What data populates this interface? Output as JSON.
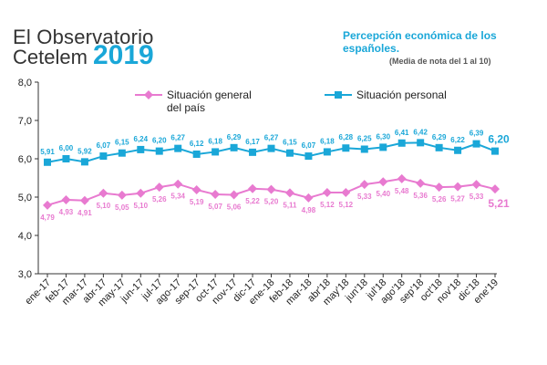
{
  "brand": {
    "line1": "El Observatorio",
    "line2": "Cetelem",
    "year": "2019"
  },
  "header": {
    "title": "Percepción económica de los españoles.",
    "subtitle": "(Media de nota del 1 al 10)"
  },
  "colors": {
    "personal": "#1aa7d8",
    "general": "#e87ad0",
    "axis": "#333333"
  },
  "chart_data": {
    "type": "line",
    "title": "Percepción económica de los españoles.",
    "subtitle": "(Media de nota del 1 al 10)",
    "xlabel": "",
    "ylabel": "",
    "ylim": [
      3.0,
      8.0
    ],
    "yticks": [
      "3,0",
      "4,0",
      "5,0",
      "6,0",
      "7,0",
      "8,0"
    ],
    "grid": false,
    "legend_position": "top",
    "categories": [
      "ene-17",
      "feb-17",
      "mar-17",
      "abr-17",
      "may-17",
      "jun-17",
      "jul-17",
      "ago-17",
      "sep-17",
      "oct-17",
      "nov-17",
      "dic-17",
      "ene-18",
      "feb-18",
      "mar-18",
      "abr'18",
      "may'18",
      "jun'18",
      "jul'18",
      "ago'18",
      "sep'18",
      "oct'18",
      "nov'18",
      "dic'18",
      "ene'19"
    ],
    "series": [
      {
        "name": "Situación general del país",
        "color": "#e87ad0",
        "marker": "diamond",
        "values": [
          4.79,
          4.93,
          4.91,
          5.1,
          5.05,
          5.1,
          5.26,
          5.34,
          5.19,
          5.07,
          5.06,
          5.22,
          5.2,
          5.11,
          4.98,
          5.12,
          5.12,
          5.33,
          5.4,
          5.48,
          5.36,
          5.26,
          5.27,
          5.33,
          5.21
        ],
        "labels": [
          "4,79",
          "4,93",
          "4,91",
          "5,10",
          "5,05",
          "5,10",
          "5,26",
          "5,34",
          "5,19",
          "5,07",
          "5,06",
          "5,22",
          "5,20",
          "5,11",
          "4,98",
          "5,12",
          "5,12",
          "5,33",
          "5,40",
          "5,48",
          "5,36",
          "5,26",
          "5,27",
          "5,33",
          "5,21"
        ]
      },
      {
        "name": "Situación personal",
        "color": "#1aa7d8",
        "marker": "square",
        "values": [
          5.91,
          6.0,
          5.92,
          6.07,
          6.15,
          6.24,
          6.2,
          6.27,
          6.12,
          6.18,
          6.29,
          6.17,
          6.27,
          6.15,
          6.07,
          6.18,
          6.28,
          6.25,
          6.3,
          6.41,
          6.42,
          6.29,
          6.22,
          6.39,
          6.2
        ],
        "labels": [
          "5,91",
          "6,00",
          "5,92",
          "6,07",
          "6,15",
          "6,24",
          "6,20",
          "6,27",
          "6,12",
          "6,18",
          "6,29",
          "6,17",
          "6,27",
          "6,15",
          "6,07",
          "6,18",
          "6,28",
          "6,25",
          "6,30",
          "6,41",
          "6,42",
          "6,29",
          "6,22",
          "6,39",
          "6,20"
        ]
      }
    ],
    "legend": [
      "Situación general del país",
      "Situación personal"
    ]
  }
}
